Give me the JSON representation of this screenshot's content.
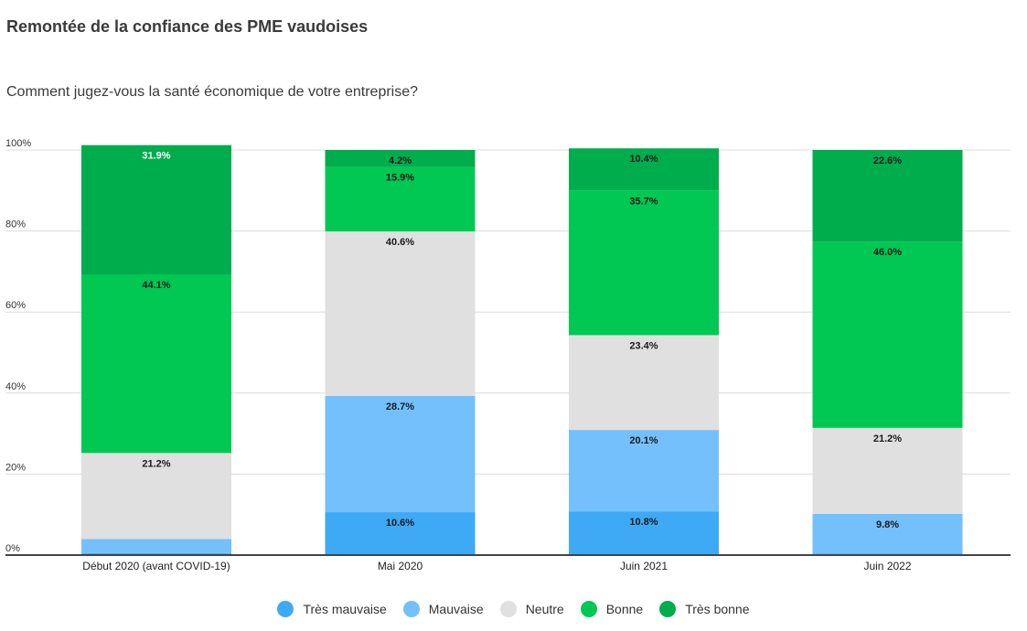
{
  "chart_data": {
    "type": "bar",
    "stacked": true,
    "title": "Remontée de la confiance des PME vaudoises",
    "subtitle": "Comment jugez-vous la santé économique de votre entreprise?",
    "categories": [
      "Début 2020 (avant COVID-19)",
      "Mai 2020",
      "Juin 2021",
      "Juin 2022"
    ],
    "ylim": [
      0,
      100
    ],
    "yticks": [
      "0%",
      "20%",
      "40%",
      "60%",
      "80%",
      "100%"
    ],
    "grid": true,
    "legend_position": "bottom",
    "series": [
      {
        "name": "Très mauvaise",
        "color": "#3ea9f5",
        "values": [
          0.5,
          10.6,
          10.8,
          0.4
        ],
        "labels": [
          "",
          "10.6%",
          "10.8%",
          ""
        ]
      },
      {
        "name": "Mauvaise",
        "color": "#74c0fc",
        "values": [
          3.5,
          28.7,
          20.1,
          9.8
        ],
        "labels": [
          "",
          "28.7%",
          "20.1%",
          "9.8%"
        ]
      },
      {
        "name": "Neutre",
        "color": "#e0e0e0",
        "values": [
          21.2,
          40.6,
          23.4,
          21.2
        ],
        "labels": [
          "21.2%",
          "40.6%",
          "23.4%",
          "21.2%"
        ]
      },
      {
        "name": "Bonne",
        "color": "#00c853",
        "values": [
          44.1,
          15.9,
          35.7,
          46.0
        ],
        "labels": [
          "44.1%",
          "15.9%",
          "35.7%",
          "46.0%"
        ]
      },
      {
        "name": "Très bonne",
        "color": "#00ad4d",
        "values": [
          31.9,
          4.2,
          10.4,
          22.6
        ],
        "labels": [
          "31.9%",
          "4.2%",
          "10.4%",
          "22.6%"
        ]
      }
    ]
  }
}
